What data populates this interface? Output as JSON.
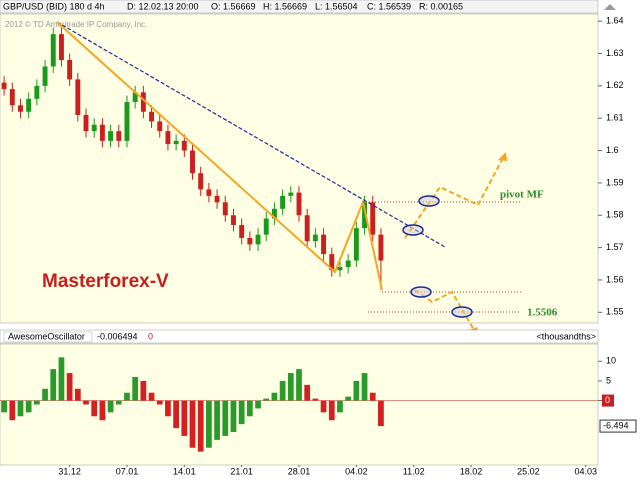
{
  "header": {
    "symbol": "GBP/USD (BID) 180 d 4h",
    "date": "D: 12.02.13 20:00",
    "open": "O: 1.56669",
    "high": "H: 1.56669",
    "low": "L: 1.56504",
    "close": "C: 1.56539",
    "range": "R: 0.00165"
  },
  "copyright": "2012 © TD Ameritrade IP Company, Inc.",
  "chart_data": [
    {
      "type": "candlestick",
      "up_color": "#1a9a1a",
      "down_color": "#cc1f1f",
      "open": [
        1.621,
        1.619,
        1.614,
        1.612,
        1.616,
        1.62,
        1.626,
        1.636,
        1.628,
        1.622,
        1.611,
        1.606,
        1.608,
        1.603,
        1.606,
        1.603,
        1.615,
        1.618,
        1.612,
        1.609,
        1.606,
        1.602,
        1.603,
        1.6,
        1.593,
        1.588,
        1.586,
        1.584,
        1.58,
        1.577,
        1.573,
        1.571,
        1.574,
        1.579,
        1.582,
        1.586,
        1.587,
        1.58,
        1.572,
        1.574,
        1.568,
        1.563,
        1.564,
        1.566,
        1.576,
        1.584,
        1.574
      ],
      "high": [
        1.623,
        1.621,
        1.616,
        1.618,
        1.622,
        1.628,
        1.638,
        1.638,
        1.63,
        1.624,
        1.613,
        1.61,
        1.61,
        1.608,
        1.608,
        1.617,
        1.62,
        1.62,
        1.614,
        1.611,
        1.608,
        1.605,
        1.605,
        1.602,
        1.595,
        1.59,
        1.588,
        1.586,
        1.582,
        1.579,
        1.575,
        1.576,
        1.581,
        1.584,
        1.588,
        1.589,
        1.589,
        1.582,
        1.576,
        1.576,
        1.57,
        1.566,
        1.568,
        1.578,
        1.586,
        1.586,
        1.576
      ],
      "low": [
        1.617,
        1.612,
        1.61,
        1.61,
        1.614,
        1.618,
        1.624,
        1.626,
        1.62,
        1.609,
        1.604,
        1.604,
        1.601,
        1.601,
        1.601,
        1.601,
        1.613,
        1.61,
        1.607,
        1.604,
        1.6,
        1.6,
        1.598,
        1.591,
        1.586,
        1.584,
        1.582,
        1.578,
        1.575,
        1.571,
        1.569,
        1.569,
        1.572,
        1.577,
        1.58,
        1.584,
        1.578,
        1.57,
        1.57,
        1.566,
        1.561,
        1.561,
        1.562,
        1.564,
        1.574,
        1.572,
        1.557
      ],
      "close": [
        1.619,
        1.614,
        1.612,
        1.616,
        1.62,
        1.626,
        1.636,
        1.628,
        1.622,
        1.611,
        1.606,
        1.608,
        1.603,
        1.606,
        1.603,
        1.615,
        1.618,
        1.612,
        1.609,
        1.606,
        1.602,
        1.603,
        1.6,
        1.593,
        1.588,
        1.586,
        1.584,
        1.58,
        1.577,
        1.573,
        1.571,
        1.574,
        1.579,
        1.582,
        1.586,
        1.587,
        1.58,
        1.572,
        1.574,
        1.568,
        1.563,
        1.564,
        1.566,
        1.576,
        1.584,
        1.574,
        1.566
      ],
      "ylim": [
        1.547,
        1.645
      ],
      "yticks": [
        1.55,
        1.56,
        1.57,
        1.58,
        1.59,
        1.6,
        1.61,
        1.62,
        1.63,
        1.64
      ],
      "annotations": {
        "brand": "Masterforex-V",
        "pivot": "pivot MF",
        "level": "1.5506"
      }
    },
    {
      "type": "bar",
      "title": "AwesomeOscillator",
      "value_label": "-0.006494",
      "status": "0",
      "units": "<thousandths>",
      "up_color": "#2a9a2a",
      "down_color": "#d42020",
      "categories": [
        null,
        null,
        null,
        null,
        null,
        null,
        null,
        null,
        "31.12",
        null,
        null,
        null,
        null,
        null,
        null,
        "07.01",
        null,
        null,
        null,
        null,
        null,
        null,
        "14.01",
        null,
        null,
        null,
        null,
        null,
        null,
        "21.01",
        null,
        null,
        null,
        null,
        null,
        null,
        "28.01",
        null,
        null,
        null,
        null,
        null,
        null,
        "04.02",
        null,
        null,
        null,
        null,
        null,
        null,
        "11.02",
        null,
        null,
        null,
        null,
        null,
        null,
        "18.02",
        null,
        null,
        null,
        null,
        null,
        null,
        "25.02",
        null,
        null,
        null,
        null,
        null,
        null,
        "04.03",
        null
      ],
      "values": [
        -3,
        -5,
        -4,
        -3,
        -1,
        3,
        8,
        11,
        7,
        3,
        -1,
        -4,
        -5,
        -3,
        -1,
        2,
        6,
        5,
        2,
        -1,
        -4,
        -7,
        -9,
        -12,
        -13,
        -12,
        -10,
        -9,
        -8,
        -6,
        -4,
        -2,
        0.5,
        2,
        5,
        7,
        8,
        4,
        0.5,
        -3,
        -5,
        -3,
        1,
        5,
        7,
        2,
        -6.494,
        null,
        null,
        null,
        null,
        null,
        null,
        null,
        null,
        null,
        null,
        null,
        null,
        null,
        null,
        null,
        null,
        null,
        null,
        null,
        null,
        null,
        null,
        null,
        null,
        null,
        null
      ],
      "last_label": "-6.494",
      "ylim": [
        -16.4,
        14.4
      ],
      "yticks": [
        10,
        5,
        0
      ]
    }
  ]
}
